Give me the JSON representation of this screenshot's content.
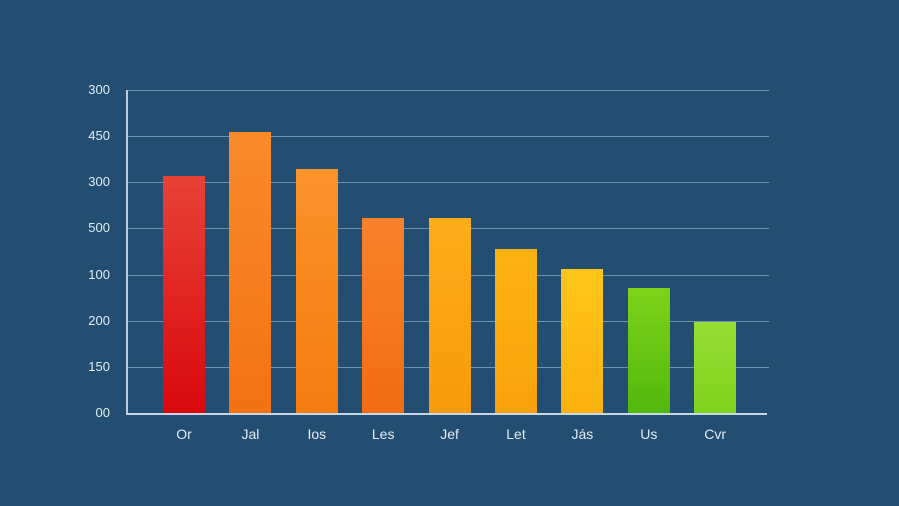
{
  "chart_data": {
    "type": "bar",
    "title": "",
    "xlabel": "",
    "ylabel": "",
    "categories": [
      "Or",
      "Jal",
      "Ios",
      "Les",
      "Jef",
      "Let",
      "Jás",
      "Us",
      "Cvr"
    ],
    "values": [
      257,
      304,
      264,
      211,
      211,
      178,
      156,
      135,
      99
    ],
    "y_tick_labels": [
      "300",
      "450",
      "300",
      "500",
      "100",
      "200",
      "150",
      "00"
    ],
    "ylim": [
      0,
      350
    ],
    "grid": true,
    "legend": null,
    "bar_colors": [
      [
        "#e84237",
        "#d9080e"
      ],
      [
        "#f98a2a",
        "#f37211"
      ],
      [
        "#fa932a",
        "#f57c10"
      ],
      [
        "#f9822a",
        "#f26c12"
      ],
      [
        "#fdac1a",
        "#f89b0c"
      ],
      [
        "#fdb313",
        "#f9a20c"
      ],
      [
        "#fec51a",
        "#fbb20e"
      ],
      [
        "#7ed31a",
        "#52b80b"
      ],
      [
        "#97dc34",
        "#80d21c"
      ]
    ]
  }
}
